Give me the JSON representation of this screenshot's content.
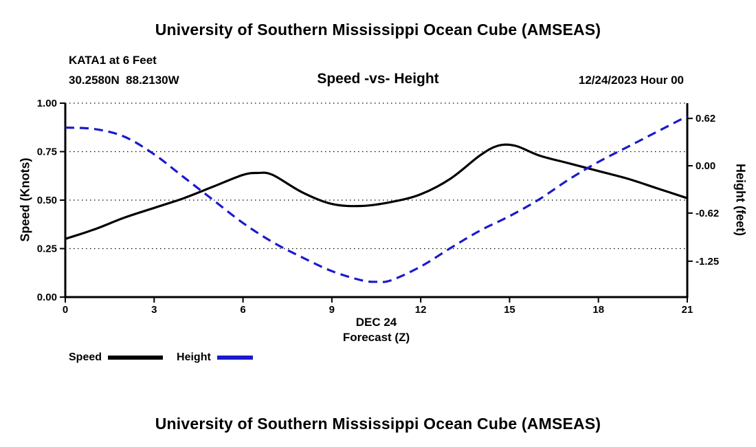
{
  "header": {
    "main_title": "University of Southern Mississippi Ocean Cube (AMSEAS)",
    "station": "KATA1 at 6 Feet",
    "coordinates": "30.2580N  88.2130W",
    "plot_title": "Speed -vs- Height",
    "datetime": "12/24/2023 Hour 00"
  },
  "legend": {
    "speed_label": "Speed",
    "height_label": "Height"
  },
  "colors": {
    "speed": "#000000",
    "height": "#1a1acd",
    "axis": "#000000",
    "grid": "#000000"
  },
  "footer": {
    "second_title": "University of Southern Mississippi Ocean Cube (AMSEAS)"
  },
  "chart_data": {
    "type": "line",
    "title": "Speed -vs- Height",
    "xlabel_line1": "DEC 24",
    "xlabel_line2": "Forecast (Z)",
    "xlim": [
      0,
      21
    ],
    "x_ticks": [
      0,
      3,
      6,
      9,
      12,
      15,
      18,
      21
    ],
    "x_tick_labels": [
      "0",
      "3",
      "6",
      "9",
      "12",
      "15",
      "18",
      "21"
    ],
    "grid": "horizontal-dotted",
    "legend_position": "bottom-left",
    "left_axis": {
      "label": "Speed (Knots)",
      "lim": [
        0,
        1
      ],
      "ticks": [
        0,
        0.25,
        0.5,
        0.75,
        1
      ],
      "tick_labels": [
        "0.00",
        "0.25",
        "0.50",
        "0.75",
        "1.00"
      ]
    },
    "right_axis": {
      "label": "Height (feet)",
      "lim": [
        -1.72,
        0.82
      ],
      "ticks": [
        0.62,
        0,
        -0.62,
        -1.25
      ],
      "tick_labels": [
        "0.62",
        "0.00",
        "-0.62",
        "-1.25"
      ]
    },
    "series": [
      {
        "name": "Speed",
        "axis": "left",
        "units": "knots",
        "color": "#000000",
        "style": "solid",
        "x": [
          0,
          1,
          2,
          3,
          4,
          5,
          6,
          6.5,
          7,
          8,
          9,
          10,
          11,
          12,
          13,
          14,
          14.6,
          15.2,
          16,
          17,
          18,
          19,
          20,
          21
        ],
        "values": [
          0.3,
          0.35,
          0.41,
          0.46,
          0.51,
          0.57,
          0.63,
          0.64,
          0.63,
          0.54,
          0.48,
          0.47,
          0.49,
          0.53,
          0.61,
          0.73,
          0.78,
          0.78,
          0.73,
          0.69,
          0.65,
          0.61,
          0.56,
          0.51
        ]
      },
      {
        "name": "Height",
        "axis": "right",
        "units": "feet",
        "color": "#1a1acd",
        "style": "dashed",
        "x": [
          0,
          1,
          2,
          3,
          4,
          5,
          6,
          7,
          8,
          9,
          10,
          10.5,
          11,
          12,
          13,
          14,
          15,
          16,
          17,
          18,
          19,
          20,
          21
        ],
        "values": [
          0.5,
          0.48,
          0.38,
          0.15,
          -0.15,
          -0.45,
          -0.75,
          -1.0,
          -1.2,
          -1.38,
          -1.5,
          -1.52,
          -1.5,
          -1.32,
          -1.08,
          -0.85,
          -0.66,
          -0.44,
          -0.18,
          0.05,
          0.25,
          0.45,
          0.65
        ]
      }
    ]
  }
}
